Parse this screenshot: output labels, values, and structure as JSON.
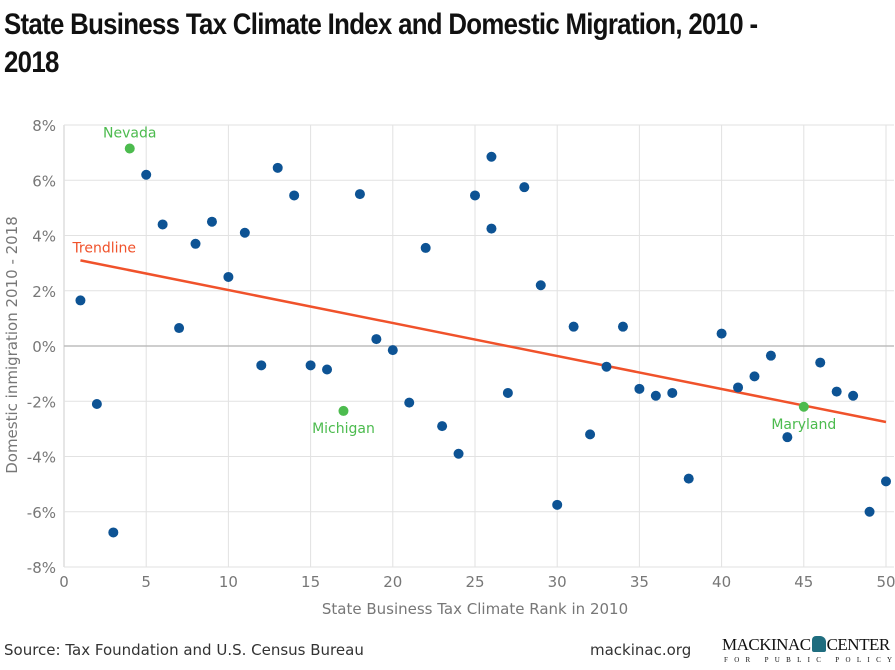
{
  "title": "State Business Tax Climate Index and Domestic Migration, 2010 - 2018",
  "footer": {
    "source": "Source: Tax Foundation and U.S. Census Bureau",
    "site": "mackinac.org",
    "logo_text": "MACKINAC CENTER",
    "logo_subtext": "FOR PUBLIC POLICY"
  },
  "colors": {
    "points": "#0d5394",
    "highlight": "#4cbb4e",
    "trend": "#f0522b",
    "grid": "#e2e2e2",
    "zero": "#bdbdbd"
  },
  "chart_data": {
    "type": "scatter",
    "xlabel": "State Business Tax Climate Rank in 2010",
    "ylabel": "Domestic inmigration 2010 - 2018",
    "xlim": [
      0,
      50
    ],
    "ylim": [
      -8,
      8
    ],
    "xticks": [
      "0",
      "5",
      "10",
      "15",
      "20",
      "25",
      "30",
      "35",
      "40",
      "45",
      "50"
    ],
    "yticks": [
      "-8%",
      "-6%",
      "-4%",
      "-2%",
      "0%",
      "2%",
      "4%",
      "6%",
      "8%"
    ],
    "grid": true,
    "points": [
      {
        "x": 1,
        "y": 1.65
      },
      {
        "x": 2,
        "y": -2.1
      },
      {
        "x": 3,
        "y": -6.75
      },
      {
        "x": 4,
        "y": 7.15,
        "label": "Nevada",
        "highlight": true
      },
      {
        "x": 5,
        "y": 6.2
      },
      {
        "x": 6,
        "y": 4.4
      },
      {
        "x": 7,
        "y": 0.65
      },
      {
        "x": 8,
        "y": 3.7
      },
      {
        "x": 9,
        "y": 4.5
      },
      {
        "x": 10,
        "y": 2.5
      },
      {
        "x": 11,
        "y": 4.1
      },
      {
        "x": 12,
        "y": -0.7
      },
      {
        "x": 13,
        "y": 6.45
      },
      {
        "x": 14,
        "y": 5.45
      },
      {
        "x": 15,
        "y": -0.7
      },
      {
        "x": 16,
        "y": -0.85
      },
      {
        "x": 17,
        "y": -2.35,
        "label": "Michigan",
        "highlight": true
      },
      {
        "x": 18,
        "y": 5.5
      },
      {
        "x": 19,
        "y": 0.25
      },
      {
        "x": 20,
        "y": -0.15
      },
      {
        "x": 21,
        "y": -2.05
      },
      {
        "x": 22,
        "y": 3.55
      },
      {
        "x": 23,
        "y": -2.9
      },
      {
        "x": 24,
        "y": -3.9
      },
      {
        "x": 25,
        "y": 5.45
      },
      {
        "x": 26,
        "y": 6.85
      },
      {
        "x": 26,
        "y": 4.25
      },
      {
        "x": 27,
        "y": -1.7
      },
      {
        "x": 28,
        "y": 5.75
      },
      {
        "x": 29,
        "y": 2.2
      },
      {
        "x": 30,
        "y": -5.75
      },
      {
        "x": 31,
        "y": 0.7
      },
      {
        "x": 32,
        "y": -3.2
      },
      {
        "x": 33,
        "y": -0.75
      },
      {
        "x": 34,
        "y": 0.7
      },
      {
        "x": 35,
        "y": -1.55
      },
      {
        "x": 36,
        "y": -1.8
      },
      {
        "x": 37,
        "y": -1.7
      },
      {
        "x": 38,
        "y": -4.8
      },
      {
        "x": 40,
        "y": 0.45
      },
      {
        "x": 41,
        "y": -1.5
      },
      {
        "x": 42,
        "y": -1.1
      },
      {
        "x": 43,
        "y": -0.35
      },
      {
        "x": 44,
        "y": -3.3
      },
      {
        "x": 45,
        "y": -2.2,
        "label": "Maryland",
        "highlight": true
      },
      {
        "x": 46,
        "y": -0.6
      },
      {
        "x": 47,
        "y": -1.65
      },
      {
        "x": 48,
        "y": -1.8
      },
      {
        "x": 49,
        "y": -6.0
      },
      {
        "x": 50,
        "y": -4.9
      }
    ],
    "trendline": {
      "label": "Trendline",
      "x": [
        1,
        50
      ],
      "y": [
        3.1,
        -2.75
      ]
    }
  }
}
